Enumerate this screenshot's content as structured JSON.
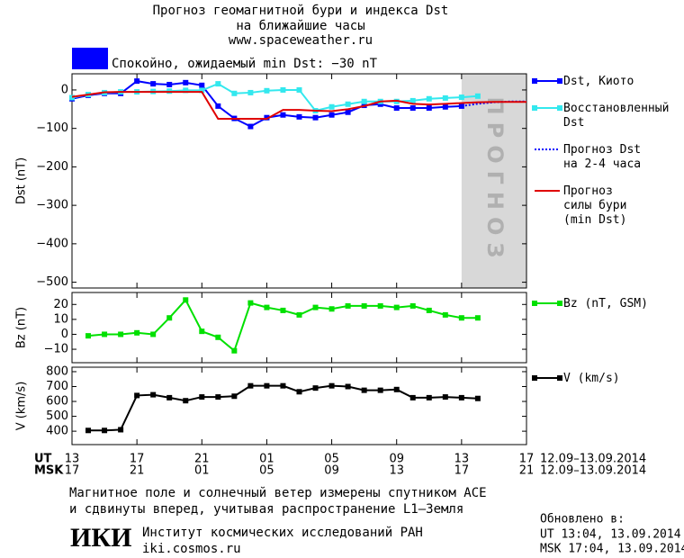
{
  "header": {
    "title": "Прогноз геомагнитной бури и индекса Dst",
    "subtitle": "на ближайшие часы",
    "url": "www.spaceweather.ru"
  },
  "status": {
    "text": "Спокойно, ожидаемый min Dst: −30 nT",
    "color": "#0000ff"
  },
  "chart_data": [
    {
      "type": "line",
      "y_label": "Dst (nT)",
      "xlim": [
        0,
        28
      ],
      "ylim": [
        -515,
        42
      ],
      "yticks": [
        0,
        {
          "value": -100,
          "label": "−100"
        },
        {
          "value": -200,
          "label": "−200"
        },
        {
          "value": -300,
          "label": "−300"
        },
        {
          "value": -400,
          "label": "−400"
        },
        {
          "value": -500,
          "label": "−500"
        }
      ],
      "forecast_span": [
        24,
        28
      ],
      "forecast_label": "ПРОГНОЗ",
      "series": [
        {
          "name": "Dst, Киото",
          "color": "#0000ff",
          "marker": "square",
          "dash": "none",
          "x": [
            0,
            1,
            2,
            3,
            4,
            5,
            6,
            7,
            8,
            9,
            10,
            11,
            12,
            13,
            14,
            15,
            16,
            17,
            18,
            19,
            20,
            21,
            22,
            23,
            24
          ],
          "values": [
            -23,
            -14,
            -9,
            -9,
            23,
            16,
            14,
            19,
            12,
            -42,
            -74,
            -95,
            -72,
            -65,
            -70,
            -72,
            -65,
            -58,
            -40,
            -37,
            -47,
            -47,
            -47,
            -44,
            -42
          ]
        },
        {
          "name": "Восстановленный\nDst",
          "color": "#33e8ee",
          "marker": "square",
          "dash": "none",
          "x": [
            0,
            1,
            2,
            3,
            4,
            5,
            6,
            7,
            8,
            9,
            10,
            11,
            12,
            13,
            14,
            15,
            16,
            17,
            18,
            19,
            20,
            21,
            22,
            23,
            24,
            25
          ],
          "values": [
            -20,
            -12,
            -7,
            -5,
            -5,
            -4,
            -3,
            -1,
            -1,
            16,
            -9,
            -7,
            -2,
            0,
            0,
            -54,
            -44,
            -37,
            -30,
            -30,
            -30,
            -28,
            -23,
            -21,
            -19,
            -16
          ]
        },
        {
          "name": "Прогноз Dst\nна 2-4 часа",
          "color": "#0000ff",
          "marker": "none",
          "dash": "2,2",
          "x": [
            24,
            25,
            26,
            27,
            28
          ],
          "values": [
            -42,
            -36,
            -32,
            -30,
            -30
          ]
        },
        {
          "name": "Прогноз\nсилы бури\n(min Dst)",
          "color": "#e00000",
          "marker": "none",
          "dash": "none",
          "x": [
            0,
            1,
            2,
            3,
            4,
            5,
            6,
            7,
            8,
            9,
            10,
            11,
            12,
            13,
            14,
            15,
            16,
            17,
            18,
            19,
            20,
            21,
            22,
            23,
            24,
            25,
            26,
            27,
            28
          ],
          "values": [
            -18,
            -12,
            -6,
            -5,
            -5,
            -5,
            -5,
            -5,
            -5,
            -75,
            -75,
            -75,
            -75,
            -52,
            -52,
            -54,
            -55,
            -50,
            -42,
            -30,
            -28,
            -36,
            -38,
            -36,
            -34,
            -32,
            -31,
            -31,
            -31
          ]
        }
      ]
    },
    {
      "type": "line",
      "y_label": "Bz (nT)",
      "xlim": [
        0,
        28
      ],
      "ylim": [
        -19,
        28
      ],
      "yticks": [
        20,
        10,
        0,
        {
          "value": -10,
          "label": "−10"
        }
      ],
      "series": [
        {
          "name": "Bz (nT, GSM)",
          "color": "#00e000",
          "marker": "square",
          "dash": "none",
          "x": [
            1,
            2,
            3,
            4,
            5,
            6,
            7,
            8,
            9,
            10,
            11,
            12,
            13,
            14,
            15,
            16,
            17,
            18,
            19,
            20,
            21,
            22,
            23,
            24,
            25
          ],
          "values": [
            -1,
            0,
            0,
            1,
            0,
            11,
            23,
            2,
            -2,
            -11,
            21,
            18,
            16,
            13,
            18,
            17,
            19,
            19,
            19,
            18,
            19,
            16,
            13,
            11,
            11
          ]
        }
      ]
    },
    {
      "type": "line",
      "y_label": "V (km/s)",
      "xlim": [
        0,
        28
      ],
      "ylim": [
        310,
        830
      ],
      "yticks": [
        800,
        700,
        600,
        500,
        400
      ],
      "xticks": [
        {
          "value": 0,
          "label": "13"
        },
        {
          "value": 4,
          "label": "17"
        },
        {
          "value": 8,
          "label": "21"
        },
        {
          "value": 12,
          "label": "01"
        },
        {
          "value": 16,
          "label": "05"
        },
        {
          "value": 20,
          "label": "09"
        },
        {
          "value": 24,
          "label": "13"
        },
        {
          "value": 28,
          "label": "17"
        }
      ],
      "xticks_msk": [
        {
          "value": 0,
          "label": "17"
        },
        {
          "value": 4,
          "label": "21"
        },
        {
          "value": 8,
          "label": "01"
        },
        {
          "value": 12,
          "label": "05"
        },
        {
          "value": 16,
          "label": "09"
        },
        {
          "value": 20,
          "label": "13"
        },
        {
          "value": 24,
          "label": "17"
        },
        {
          "value": 28,
          "label": "21"
        }
      ],
      "x_row_labels": [
        "UT",
        "MSK"
      ],
      "date_range": [
        "12.09–13.09.2014",
        "12.09–13.09.2014"
      ],
      "series": [
        {
          "name": "V (km/s)",
          "color": "#000000",
          "marker": "square",
          "dash": "none",
          "x": [
            1,
            2,
            3,
            4,
            5,
            6,
            7,
            8,
            9,
            10,
            11,
            12,
            13,
            14,
            15,
            16,
            17,
            18,
            19,
            20,
            21,
            22,
            23,
            24,
            25
          ],
          "values": [
            405,
            405,
            410,
            640,
            645,
            625,
            605,
            630,
            630,
            635,
            705,
            705,
            705,
            665,
            690,
            705,
            700,
            675,
            675,
            680,
            625,
            625,
            630,
            625,
            620
          ]
        }
      ]
    }
  ],
  "footer": {
    "note": [
      "Магнитное поле и солнечный ветер измерены спутником ACE",
      "и сдвинуты вперед, учитывая распространение L1–Земля"
    ],
    "logo": "ИКИ",
    "institute": "Институт космических исследований РАН",
    "site": "iki.cosmos.ru",
    "updated": "Обновлено в:",
    "updated_ut": "UT  13:04, 13.09.2014",
    "updated_msk": "MSK 17:04, 13.09.2014"
  }
}
